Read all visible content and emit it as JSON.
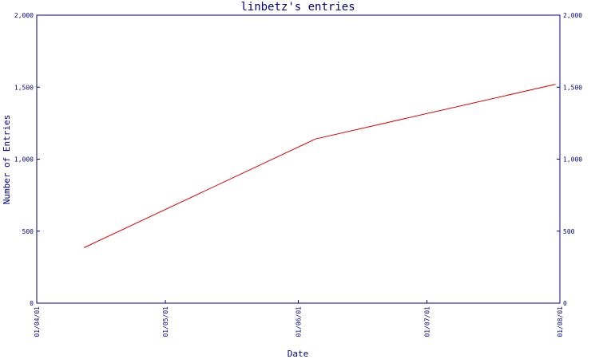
{
  "chart_data": {
    "type": "line",
    "title": "linbetz's entries",
    "xlabel": "Date",
    "ylabel": "Number of Entries",
    "x_tick_labels": [
      "01/04/01",
      "01/05/01",
      "01/06/01",
      "01/07/01",
      "01/08/01"
    ],
    "x_tick_dates": [
      "2001-04-01",
      "2001-05-01",
      "2001-06-01",
      "2001-07-01",
      "2001-08-01"
    ],
    "xlim": [
      "2001-04-01",
      "2001-08-01"
    ],
    "y_tick_labels": [
      "0",
      "500",
      "1,000",
      "1,500",
      "2,000"
    ],
    "y_tick_values": [
      0,
      500,
      1000,
      1500,
      2000
    ],
    "ylim": [
      0,
      2000
    ],
    "grid": false,
    "legend": "none",
    "series": [
      {
        "color": "#e00000",
        "points": [
          {
            "x": "2001-04-12",
            "y": 385
          },
          {
            "x": "2001-06-05",
            "y": 1140
          },
          {
            "x": "2001-07-31",
            "y": 1520
          }
        ]
      }
    ]
  },
  "colors": {
    "axis": "#000080",
    "text": "#000080",
    "line": "#e00000",
    "background": "#ffffff"
  }
}
